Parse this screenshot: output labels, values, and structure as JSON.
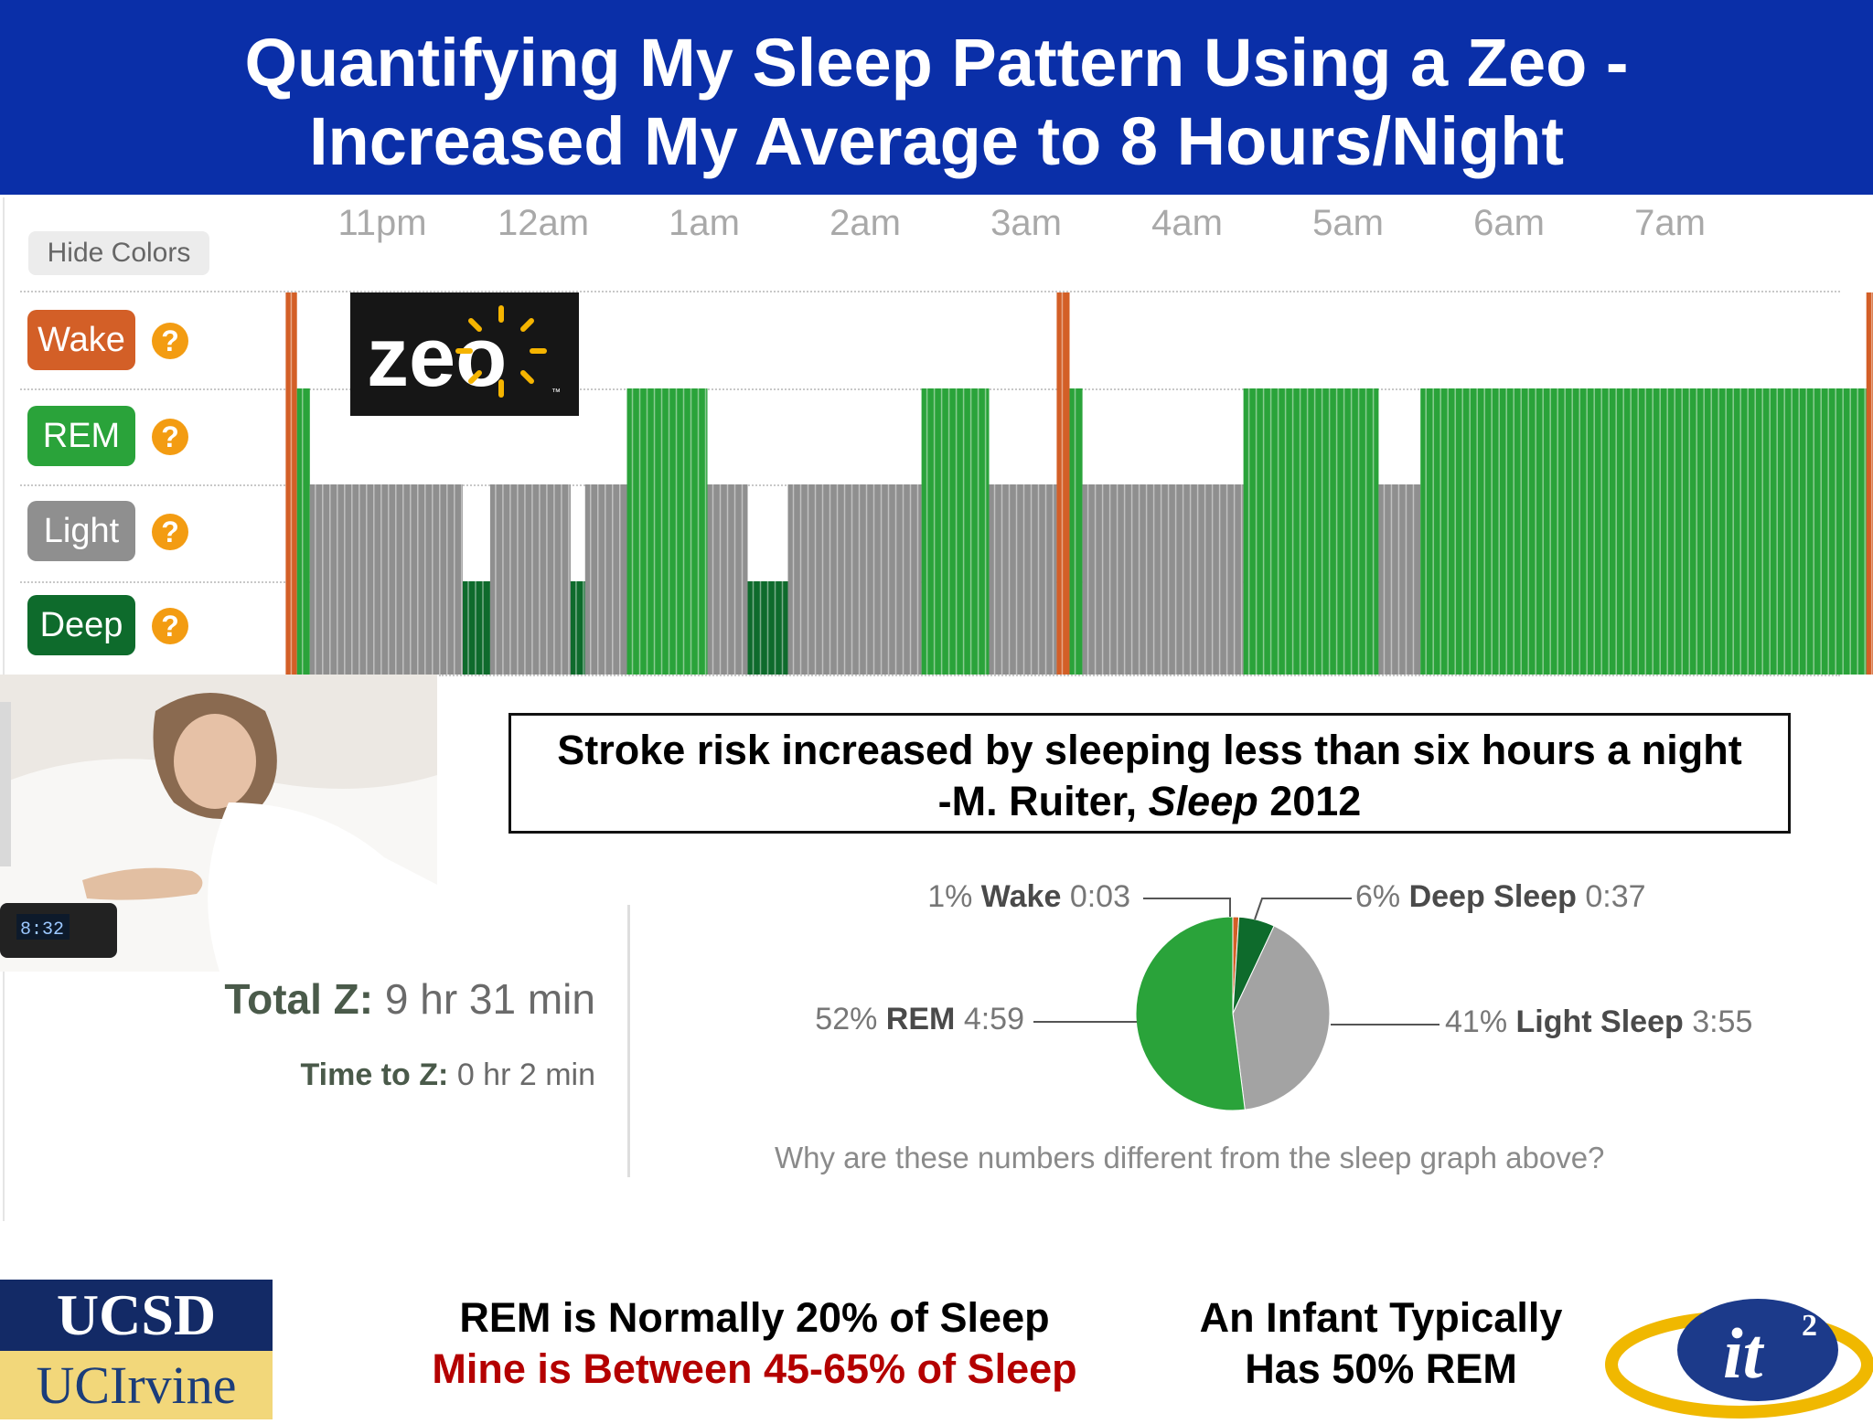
{
  "header": {
    "title_line1": "Quantifying My Sleep Pattern Using a Zeo -",
    "title_line2": "Increased My Average to 8 Hours/Night"
  },
  "controls": {
    "hide_colors_label": "Hide Colors"
  },
  "legend": {
    "stages": [
      {
        "label": "Wake",
        "color": "#d35f27"
      },
      {
        "label": "REM",
        "color": "#2aa33a"
      },
      {
        "label": "Light",
        "color": "#8f8f8f"
      },
      {
        "label": "Deep",
        "color": "#0e6b2c"
      }
    ],
    "help_icon": "?"
  },
  "logo": {
    "zeo_text": "zeo",
    "tm": "™"
  },
  "chart_data": [
    {
      "type": "bar",
      "title": "",
      "x_ticks": [
        "11pm",
        "12am",
        "1am",
        "2am",
        "3am",
        "4am",
        "5am",
        "6am",
        "7am"
      ],
      "y_levels": [
        "Wake",
        "REM",
        "Light",
        "Deep"
      ],
      "y_level_values": {
        "Wake": 4,
        "REM": 3,
        "Light": 2,
        "Deep": 1
      },
      "x_unit": "hours after 11pm",
      "grid": true,
      "segments": [
        {
          "start": -0.6,
          "end": -0.53,
          "stage": "Wake"
        },
        {
          "start": -0.53,
          "end": -0.45,
          "stage": "REM"
        },
        {
          "start": -0.45,
          "end": 0.5,
          "stage": "Light"
        },
        {
          "start": 0.5,
          "end": 0.67,
          "stage": "Deep"
        },
        {
          "start": 0.67,
          "end": 1.17,
          "stage": "Light"
        },
        {
          "start": 1.17,
          "end": 1.26,
          "stage": "Deep"
        },
        {
          "start": 1.26,
          "end": 1.52,
          "stage": "Light"
        },
        {
          "start": 1.52,
          "end": 2.02,
          "stage": "REM"
        },
        {
          "start": 2.02,
          "end": 2.27,
          "stage": "Light"
        },
        {
          "start": 2.27,
          "end": 2.52,
          "stage": "Deep"
        },
        {
          "start": 2.52,
          "end": 3.35,
          "stage": "Light"
        },
        {
          "start": 3.35,
          "end": 3.77,
          "stage": "REM"
        },
        {
          "start": 3.77,
          "end": 4.19,
          "stage": "Light"
        },
        {
          "start": 4.19,
          "end": 4.27,
          "stage": "Wake"
        },
        {
          "start": 4.27,
          "end": 4.35,
          "stage": "REM"
        },
        {
          "start": 4.35,
          "end": 5.35,
          "stage": "Light"
        },
        {
          "start": 5.35,
          "end": 6.19,
          "stage": "REM"
        },
        {
          "start": 6.19,
          "end": 6.45,
          "stage": "Light"
        },
        {
          "start": 6.45,
          "end": 9.22,
          "stage": "REM"
        },
        {
          "start": 9.22,
          "end": 9.3,
          "stage": "Wake"
        },
        {
          "start": 9.3,
          "end": 9.37,
          "stage": "REM"
        },
        {
          "start": 9.37,
          "end": 9.45,
          "stage": "Wake"
        }
      ]
    },
    {
      "type": "pie",
      "title": "",
      "slices": [
        {
          "label": "Wake",
          "percent": 1,
          "duration": "0:03",
          "color": "#d35f27"
        },
        {
          "label": "Deep Sleep",
          "percent": 6,
          "duration": "0:37",
          "color": "#0e6b2c"
        },
        {
          "label": "Light Sleep",
          "percent": 41,
          "duration": "3:55",
          "color": "#a3a3a3"
        },
        {
          "label": "REM",
          "percent": 52,
          "duration": "4:59",
          "color": "#2aa33a"
        }
      ]
    }
  ],
  "quote": {
    "line1": "Stroke risk increased by sleeping less than six hours a night",
    "line2_prefix": "-M. Ruiter, ",
    "line2_journal": "Sleep",
    "line2_year": " 2012"
  },
  "photo": {
    "clock_time": "8:32"
  },
  "stats": {
    "total_z_label": "Total Z:",
    "total_z_value": "9 hr 31 min",
    "time_to_z_label": "Time to Z:",
    "time_to_z_value": "0 hr 2 min"
  },
  "pie_labels": {
    "wake": {
      "pct": "1%",
      "name": "Wake",
      "time": "0:03"
    },
    "deep": {
      "pct": "6%",
      "name": "Deep Sleep",
      "time": "0:37"
    },
    "rem": {
      "pct": "52%",
      "name": "REM",
      "time": "4:59"
    },
    "light": {
      "pct": "41%",
      "name": "Light Sleep",
      "time": "3:55"
    },
    "question": "Why are these numbers different from the sleep graph above?"
  },
  "footer": {
    "rem_line1": "REM  is Normally 20% of Sleep",
    "rem_line2": "Mine is Between 45-65% of Sleep",
    "rem_line2_color": "#b40000",
    "infant_line1": "An Infant Typically",
    "infant_line2": "Has 50% REM"
  },
  "logos": {
    "ucsd": "UCSD",
    "ucirvine": "UCIrvine",
    "it2": "it",
    "it2_sup": "2"
  }
}
